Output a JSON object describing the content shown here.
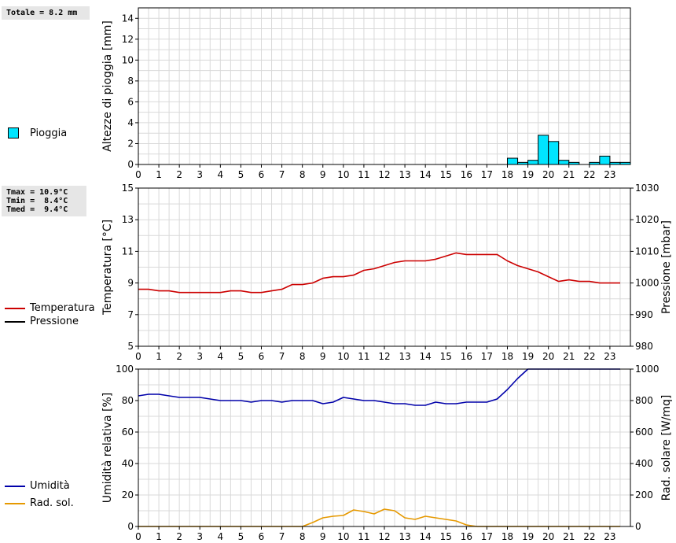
{
  "stats": {
    "totale": "Totale = 8.2 mm",
    "tmax": "Tmax = 10.9°C",
    "tmin": "Tmin =  8.4°C",
    "tmed": "Tmed =  9.4°C"
  },
  "legend": {
    "pioggia": "Pioggia",
    "temperatura": "Temperatura",
    "pressione": "Pressione",
    "umidita": "Umidità",
    "radsol": "Rad. sol."
  },
  "colors": {
    "rain_fill": "#00e5ff",
    "temperature": "#cc0000",
    "pressure": "#000000",
    "humidity": "#0000aa",
    "radiation": "#e69900",
    "grid": "#d9d9d9"
  },
  "chart_data": [
    {
      "type": "bar",
      "ylabel": "Altezze di pioggia [mm]",
      "ylim": [
        0,
        15
      ],
      "yticks": [
        0,
        2,
        4,
        6,
        8,
        10,
        12,
        14
      ],
      "xticks": [
        "0",
        "1",
        "2",
        "3",
        "4",
        "5",
        "6",
        "7",
        "8",
        "9",
        "10",
        "11",
        "12",
        "13",
        "14",
        "15",
        "16",
        "17",
        "18",
        "19",
        "20",
        "21",
        "22",
        "23"
      ],
      "grid": true,
      "series": [
        {
          "name": "Pioggia",
          "x": [
            18.0,
            18.5,
            19.0,
            19.5,
            20.0,
            20.5,
            21.0,
            21.5,
            22.0,
            22.5,
            23.0,
            23.5
          ],
          "values": [
            0.6,
            0.2,
            0.4,
            2.8,
            2.2,
            0.4,
            0.2,
            0.0,
            0.2,
            0.8,
            0.2,
            0.2
          ]
        }
      ]
    },
    {
      "type": "line",
      "ylabel": "Temperatura [°C]",
      "y2label": "Pressione [mbar]",
      "ylim": [
        5,
        15
      ],
      "yticks": [
        5,
        7,
        9,
        11,
        13,
        15
      ],
      "y2lim": [
        980,
        1030
      ],
      "y2ticks": [
        980,
        990,
        1000,
        1010,
        1020,
        1030
      ],
      "xticks": [
        "0",
        "1",
        "2",
        "3",
        "4",
        "5",
        "6",
        "7",
        "8",
        "9",
        "10",
        "11",
        "12",
        "13",
        "14",
        "15",
        "16",
        "17",
        "18",
        "19",
        "20",
        "21",
        "22",
        "23"
      ],
      "grid": true,
      "series": [
        {
          "name": "Temperatura",
          "x": [
            0,
            0.5,
            1,
            1.5,
            2,
            2.5,
            3,
            3.5,
            4,
            4.5,
            5,
            5.5,
            6,
            6.5,
            7,
            7.5,
            8,
            8.5,
            9,
            9.5,
            10,
            10.5,
            11,
            11.5,
            12,
            12.5,
            13,
            13.5,
            14,
            14.5,
            15,
            15.5,
            16,
            16.5,
            17,
            17.5,
            18,
            18.5,
            19,
            19.5,
            20,
            20.5,
            21,
            21.5,
            22,
            22.5,
            23,
            23.5
          ],
          "values": [
            8.6,
            8.6,
            8.5,
            8.5,
            8.4,
            8.4,
            8.4,
            8.4,
            8.4,
            8.5,
            8.5,
            8.4,
            8.4,
            8.5,
            8.6,
            8.9,
            8.9,
            9.0,
            9.3,
            9.4,
            9.4,
            9.5,
            9.8,
            9.9,
            10.1,
            10.3,
            10.4,
            10.4,
            10.4,
            10.5,
            10.7,
            10.9,
            10.8,
            10.8,
            10.8,
            10.8,
            10.4,
            10.1,
            9.9,
            9.7,
            9.4,
            9.1,
            9.2,
            9.1,
            9.1,
            9.0,
            9.0,
            9.0
          ]
        },
        {
          "name": "Pressione",
          "values": []
        }
      ]
    },
    {
      "type": "line",
      "ylabel": "Umidità relativa [%]",
      "y2label": "Rad. solare [W/mq]",
      "ylim": [
        0,
        100
      ],
      "yticks": [
        0,
        20,
        40,
        60,
        80,
        100
      ],
      "y2lim": [
        0,
        1000
      ],
      "y2ticks": [
        0,
        200,
        400,
        600,
        800,
        1000
      ],
      "xticks": [
        "0",
        "1",
        "2",
        "3",
        "4",
        "5",
        "6",
        "7",
        "8",
        "9",
        "10",
        "11",
        "12",
        "13",
        "14",
        "15",
        "16",
        "17",
        "18",
        "19",
        "20",
        "21",
        "22",
        "23"
      ],
      "grid": true,
      "series": [
        {
          "name": "Umidità",
          "x": [
            0,
            0.5,
            1,
            1.5,
            2,
            2.5,
            3,
            3.5,
            4,
            4.5,
            5,
            5.5,
            6,
            6.5,
            7,
            7.5,
            8,
            8.5,
            9,
            9.5,
            10,
            10.5,
            11,
            11.5,
            12,
            12.5,
            13,
            13.5,
            14,
            14.5,
            15,
            15.5,
            16,
            16.5,
            17,
            17.5,
            18,
            18.5,
            19,
            19.5,
            20,
            20.5,
            21,
            21.5,
            22,
            22.5,
            23,
            23.5
          ],
          "values": [
            83,
            84,
            84,
            83,
            82,
            82,
            82,
            81,
            80,
            80,
            80,
            79,
            80,
            80,
            79,
            80,
            80,
            80,
            78,
            79,
            82,
            81,
            80,
            80,
            79,
            78,
            78,
            77,
            77,
            79,
            78,
            78,
            79,
            79,
            79,
            81,
            87,
            94,
            100,
            100,
            100,
            100,
            100,
            100,
            100,
            100,
            100,
            100
          ]
        },
        {
          "name": "Rad. sol.",
          "x": [
            0,
            0.5,
            1,
            1.5,
            2,
            2.5,
            3,
            3.5,
            4,
            4.5,
            5,
            5.5,
            6,
            6.5,
            7,
            7.5,
            8,
            8.5,
            9,
            9.5,
            10,
            10.5,
            11,
            11.5,
            12,
            12.5,
            13,
            13.5,
            14,
            14.5,
            15,
            15.5,
            16,
            16.5,
            17,
            17.5,
            18,
            18.5,
            19,
            19.5,
            20,
            20.5,
            21,
            21.5,
            22,
            22.5,
            23,
            23.5
          ],
          "values": [
            0,
            0,
            0,
            0,
            0,
            0,
            0,
            0,
            0,
            0,
            0,
            0,
            0,
            0,
            0,
            0,
            0,
            25,
            55,
            65,
            70,
            105,
            95,
            80,
            110,
            100,
            55,
            45,
            65,
            55,
            45,
            35,
            10,
            0,
            0,
            0,
            0,
            0,
            0,
            0,
            0,
            0,
            0,
            0,
            0,
            0,
            0,
            0
          ]
        }
      ]
    }
  ]
}
